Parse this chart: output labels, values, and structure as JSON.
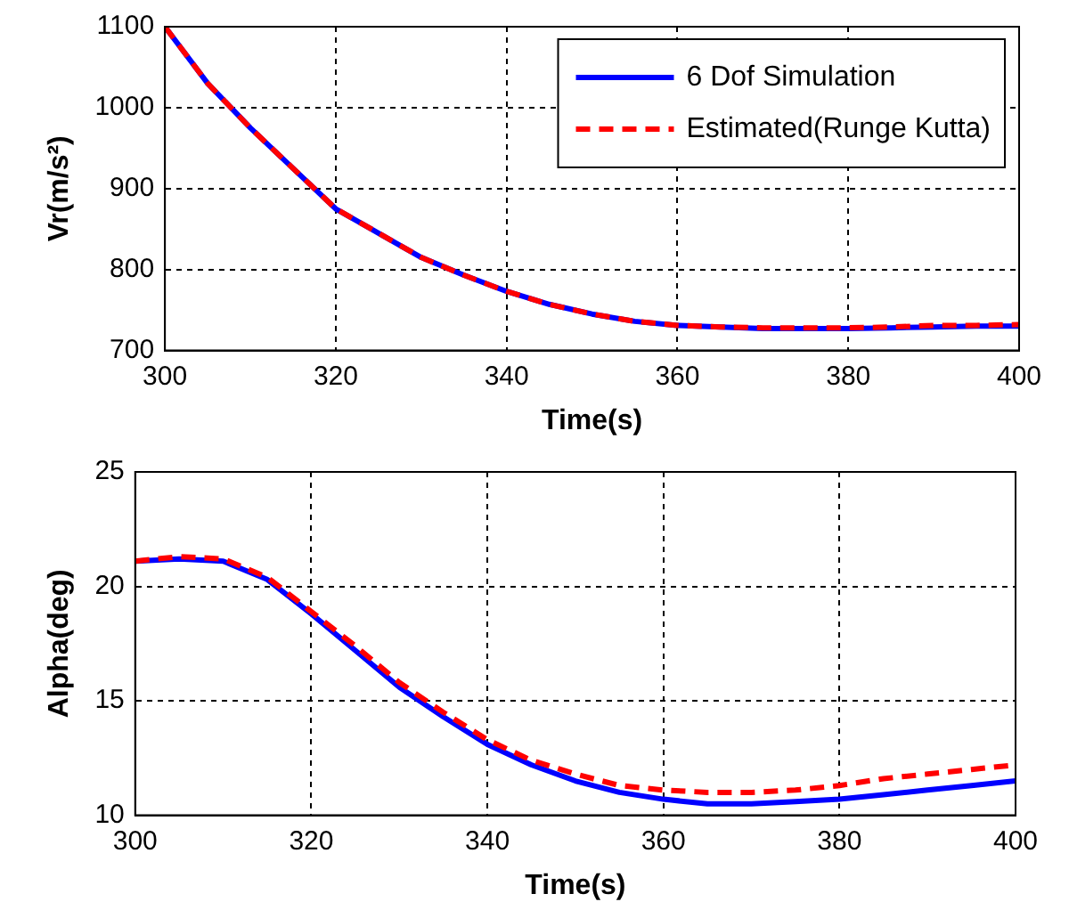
{
  "chart_data": [
    {
      "type": "line",
      "xlabel": "Time(s)",
      "ylabel": "Vr(m/s²)",
      "x": [
        300,
        305,
        310,
        315,
        320,
        325,
        330,
        335,
        340,
        345,
        350,
        355,
        360,
        365,
        370,
        375,
        380,
        385,
        390,
        395,
        400
      ],
      "xlim": [
        300,
        400
      ],
      "xticks": [
        300,
        320,
        340,
        360,
        380,
        400
      ],
      "ylim": [
        700,
        1100
      ],
      "yticks": [
        700,
        800,
        900,
        1000,
        1100
      ],
      "grid": true,
      "legend": "top right",
      "series": [
        {
          "name": "6 Dof Simulation",
          "color": "#0000ff",
          "line_style": "solid",
          "values": [
            1100,
            1030,
            975,
            925,
            875,
            845,
            815,
            793,
            773,
            757,
            745,
            736,
            731,
            729,
            727,
            727,
            727,
            728,
            729,
            730,
            730
          ]
        },
        {
          "name": "Estimated(Runge Kutta)",
          "color": "#ff0000",
          "line_style": "dashed",
          "values": [
            1100,
            1030,
            975,
            925,
            875,
            845,
            815,
            793,
            773,
            757,
            745,
            736,
            731,
            729,
            728,
            728,
            728,
            729,
            731,
            731,
            732
          ]
        }
      ]
    },
    {
      "type": "line",
      "xlabel": "Time(s)",
      "ylabel": "Alpha(deg)",
      "x": [
        300,
        305,
        310,
        315,
        320,
        325,
        330,
        335,
        340,
        345,
        350,
        355,
        360,
        365,
        370,
        375,
        380,
        385,
        390,
        395,
        400
      ],
      "xlim": [
        300,
        400
      ],
      "xticks": [
        300,
        320,
        340,
        360,
        380,
        400
      ],
      "ylim": [
        10,
        25
      ],
      "yticks": [
        10,
        15,
        20,
        25
      ],
      "grid": true,
      "series": [
        {
          "color": "#0000ff",
          "line_style": "solid",
          "values": [
            21.1,
            21.2,
            21.1,
            20.3,
            18.8,
            17.2,
            15.6,
            14.3,
            13.1,
            12.2,
            11.5,
            11.0,
            10.7,
            10.5,
            10.5,
            10.6,
            10.7,
            10.9,
            11.1,
            11.3,
            11.5
          ]
        },
        {
          "color": "#ff0000",
          "line_style": "dashed",
          "values": [
            21.1,
            21.3,
            21.2,
            20.4,
            18.9,
            17.4,
            15.8,
            14.5,
            13.3,
            12.4,
            11.8,
            11.3,
            11.1,
            11.0,
            11.0,
            11.1,
            11.3,
            11.6,
            11.8,
            12.0,
            12.2
          ]
        }
      ]
    }
  ]
}
